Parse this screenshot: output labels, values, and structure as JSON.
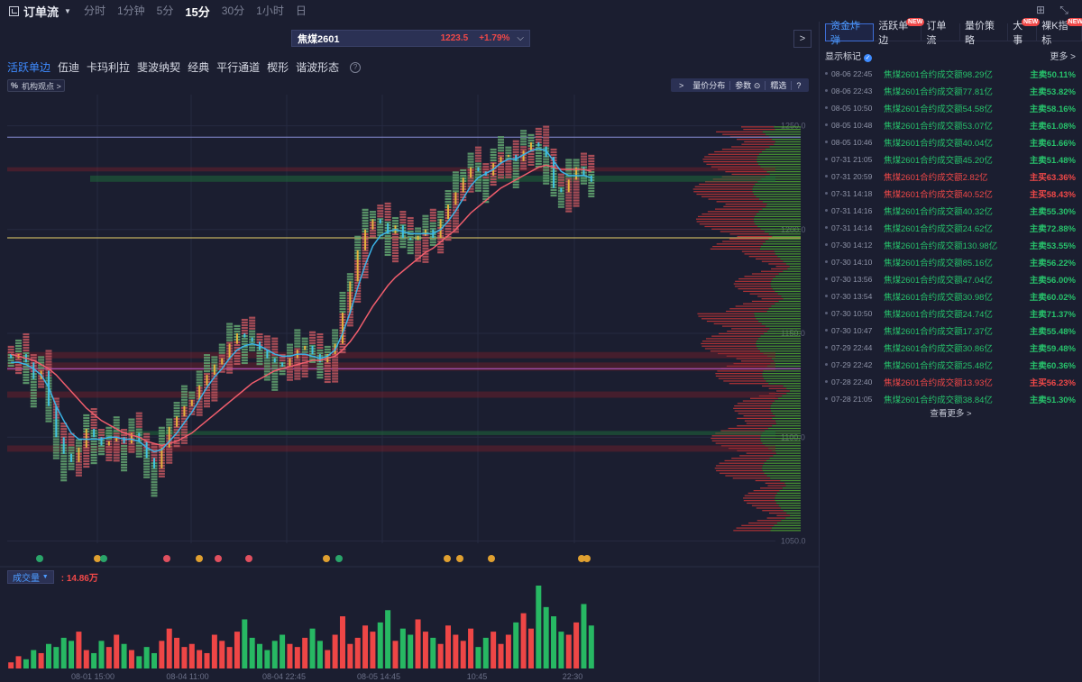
{
  "header": {
    "app_title": "订单流",
    "period_tabs": [
      "分时",
      "1分钟",
      "5分",
      "15分",
      "30分",
      "1小时",
      "日"
    ],
    "active_period": "15分"
  },
  "symbol": {
    "name": "焦煤2601",
    "price": "1223.5",
    "change": "+1.79%"
  },
  "tools": {
    "tabs": [
      "活跃单边",
      "伍迪",
      "卡玛利拉",
      "斐波纳契",
      "经典",
      "平行通道",
      "楔形",
      "谐波形态"
    ],
    "active": "活跃单边",
    "help": "?"
  },
  "inst_tag": {
    "pct": "%",
    "label": "机构观点 >"
  },
  "chart_tools": {
    "vp": "量价分布",
    "params": "参数",
    "filter": "糯选",
    "help": "?"
  },
  "volume": {
    "label": "成交量",
    "value": ": 14.86万"
  },
  "chart_data": {
    "type": "candlestick-orderflow",
    "y_ticks": [
      1250.0,
      1200.0,
      1150.0,
      1100.0,
      1050.0
    ],
    "y_tick_labels": [
      "1250.0",
      "1200.0",
      "1150.0",
      "1100.0",
      "1050.0"
    ],
    "x_tick_labels": [
      "08-01 15:00",
      "08-04 11:00",
      "08-04 22:45",
      "08-05 14:45",
      "10:45",
      "22:30"
    ],
    "ylim": [
      1045,
      1265
    ],
    "closes": [
      1138,
      1140,
      1136,
      1128,
      1132,
      1115,
      1100,
      1092,
      1088,
      1095,
      1104,
      1100,
      1096,
      1098,
      1100,
      1097,
      1102,
      1098,
      1090,
      1085,
      1095,
      1105,
      1110,
      1115,
      1118,
      1125,
      1130,
      1135,
      1138,
      1145,
      1150,
      1148,
      1146,
      1142,
      1138,
      1136,
      1134,
      1138,
      1142,
      1144,
      1140,
      1136,
      1140,
      1145,
      1160,
      1175,
      1190,
      1200,
      1205,
      1203,
      1198,
      1202,
      1196,
      1195,
      1197,
      1200,
      1196,
      1205,
      1212,
      1218,
      1225,
      1230,
      1228,
      1226,
      1232,
      1235,
      1236,
      1233,
      1238,
      1242,
      1240,
      1235,
      1220,
      1218,
      1224,
      1230,
      1226,
      1223
    ],
    "ma_fast": [
      1136,
      1136,
      1135,
      1133,
      1130,
      1124,
      1115,
      1108,
      1102,
      1099,
      1099,
      1099,
      1099,
      1100,
      1100,
      1099,
      1099,
      1098,
      1095,
      1093,
      1094,
      1098,
      1102,
      1107,
      1112,
      1118,
      1124,
      1129,
      1133,
      1138,
      1142,
      1144,
      1145,
      1144,
      1142,
      1140,
      1139,
      1139,
      1140,
      1140,
      1139,
      1138,
      1139,
      1142,
      1150,
      1160,
      1172,
      1183,
      1192,
      1197,
      1199,
      1200,
      1199,
      1198,
      1198,
      1198,
      1198,
      1200,
      1204,
      1209,
      1215,
      1221,
      1225,
      1227,
      1229,
      1232,
      1234,
      1234,
      1236,
      1238,
      1239,
      1238,
      1233,
      1228,
      1226,
      1226,
      1226,
      1225
    ],
    "ma_slow": [
      1140,
      1139,
      1138,
      1137,
      1135,
      1133,
      1130,
      1126,
      1122,
      1118,
      1114,
      1111,
      1108,
      1106,
      1104,
      1102,
      1101,
      1100,
      1098,
      1097,
      1096,
      1097,
      1098,
      1100,
      1102,
      1105,
      1108,
      1111,
      1114,
      1117,
      1120,
      1123,
      1126,
      1128,
      1130,
      1132,
      1133,
      1134,
      1135,
      1136,
      1137,
      1137,
      1138,
      1139,
      1142,
      1146,
      1151,
      1157,
      1163,
      1168,
      1173,
      1177,
      1180,
      1183,
      1186,
      1189,
      1191,
      1194,
      1197,
      1200,
      1204,
      1208,
      1211,
      1214,
      1217,
      1220,
      1222,
      1224,
      1226,
      1228,
      1230,
      1231,
      1230,
      1229,
      1229,
      1229,
      1229,
      1228
    ],
    "h_lines": [
      {
        "price": 1244.5,
        "color": "#8a8fd8"
      },
      {
        "price": 1196.0,
        "color": "#e8d26a"
      },
      {
        "price": 1133.0,
        "color": "#c25ed8"
      }
    ],
    "volumes": [
      2,
      4,
      3,
      6,
      5,
      8,
      7,
      10,
      9,
      12,
      6,
      5,
      9,
      7,
      11,
      8,
      6,
      4,
      7,
      5,
      9,
      13,
      10,
      7,
      8,
      6,
      5,
      11,
      9,
      7,
      12,
      16,
      10,
      8,
      6,
      9,
      11,
      8,
      7,
      10,
      13,
      9,
      6,
      11,
      17,
      8,
      10,
      14,
      12,
      15,
      19,
      9,
      13,
      11,
      16,
      12,
      10,
      8,
      14,
      11,
      9,
      13,
      7,
      10,
      12,
      8,
      11,
      15,
      18,
      13,
      27,
      20,
      17,
      12,
      11,
      15,
      21,
      14
    ]
  },
  "side": {
    "tabs": [
      {
        "label": "资金炸弹",
        "new": false
      },
      {
        "label": "活跃单边",
        "new": true
      },
      {
        "label": "订单流",
        "new": false
      },
      {
        "label": "量价策略",
        "new": false
      },
      {
        "label": "大事",
        "new": true
      },
      {
        "label": "裸K指标",
        "new": true
      }
    ],
    "new_label": "NEW",
    "marks_title": "显示标记",
    "more": "更多 >",
    "see_more": "查看更多 >",
    "marks": [
      {
        "time": "08-06 22:45",
        "desc": "焦煤2601合约成交额98.29亿",
        "pct": "主卖50.11%",
        "side": "sell"
      },
      {
        "time": "08-06 22:43",
        "desc": "焦煤2601合约成交额77.81亿",
        "pct": "主卖53.82%",
        "side": "sell"
      },
      {
        "time": "08-05 10:50",
        "desc": "焦煤2601合约成交额54.58亿",
        "pct": "主卖58.16%",
        "side": "sell"
      },
      {
        "time": "08-05 10:48",
        "desc": "焦煤2601合约成交额53.07亿",
        "pct": "主卖61.08%",
        "side": "sell"
      },
      {
        "time": "08-05 10:46",
        "desc": "焦煤2601合约成交额40.04亿",
        "pct": "主卖61.66%",
        "side": "sell"
      },
      {
        "time": "07-31 21:05",
        "desc": "焦煤2601合约成交额45.20亿",
        "pct": "主卖51.48%",
        "side": "sell"
      },
      {
        "time": "07-31 20:59",
        "desc": "焦煤2601合约成交额2.82亿",
        "pct": "主买63.36%",
        "side": "buy"
      },
      {
        "time": "07-31 14:18",
        "desc": "焦煤2601合约成交额40.52亿",
        "pct": "主买58.43%",
        "side": "buy"
      },
      {
        "time": "07-31 14:16",
        "desc": "焦煤2601合约成交额40.32亿",
        "pct": "主卖55.30%",
        "side": "sell"
      },
      {
        "time": "07-31 14:14",
        "desc": "焦煤2601合约成交额24.62亿",
        "pct": "主卖72.88%",
        "side": "sell"
      },
      {
        "time": "07-30 14:12",
        "desc": "焦煤2601合约成交额130.98亿",
        "pct": "主卖53.55%",
        "side": "sell"
      },
      {
        "time": "07-30 14:10",
        "desc": "焦煤2601合约成交额85.16亿",
        "pct": "主卖56.22%",
        "side": "sell"
      },
      {
        "time": "07-30 13:56",
        "desc": "焦煤2601合约成交额47.04亿",
        "pct": "主卖56.00%",
        "side": "sell"
      },
      {
        "time": "07-30 13:54",
        "desc": "焦煤2601合约成交额30.98亿",
        "pct": "主卖60.02%",
        "side": "sell"
      },
      {
        "time": "07-30 10:50",
        "desc": "焦煤2601合约成交额24.74亿",
        "pct": "主卖71.37%",
        "side": "sell"
      },
      {
        "time": "07-30 10:47",
        "desc": "焦煤2601合约成交额17.37亿",
        "pct": "主卖55.48%",
        "side": "sell"
      },
      {
        "time": "07-29 22:44",
        "desc": "焦煤2601合约成交额30.86亿",
        "pct": "主卖59.48%",
        "side": "sell"
      },
      {
        "time": "07-29 22:42",
        "desc": "焦煤2601合约成交额25.48亿",
        "pct": "主卖60.36%",
        "side": "sell"
      },
      {
        "time": "07-28 22:40",
        "desc": "焦煤2601合约成交额13.93亿",
        "pct": "主买56.23%",
        "side": "buy"
      },
      {
        "time": "07-28 21:05",
        "desc": "焦煤2601合约成交额38.84亿",
        "pct": "主卖51.30%",
        "side": "sell"
      }
    ]
  },
  "colors": {
    "up": "#f04848",
    "down": "#27c26b",
    "accent": "#3e8bff",
    "bg": "#1b1e30"
  }
}
